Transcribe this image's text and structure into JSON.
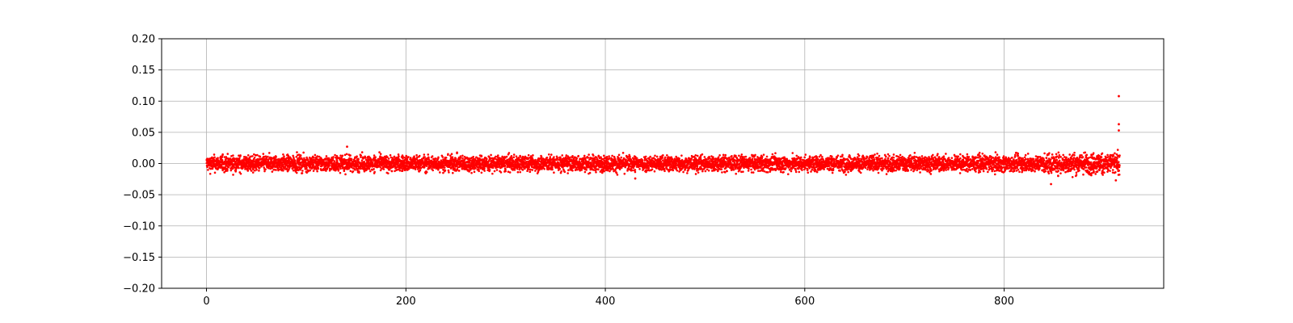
{
  "chart_data": {
    "type": "scatter",
    "title": "",
    "xlabel": "",
    "ylabel": "",
    "xlim": [
      -45,
      960
    ],
    "ylim": [
      -0.2,
      0.2
    ],
    "x_ticks": [
      0,
      200,
      400,
      600,
      800
    ],
    "x_tick_labels": [
      "0",
      "200",
      "400",
      "600",
      "800"
    ],
    "y_ticks": [
      -0.2,
      -0.15,
      -0.1,
      -0.05,
      0.0,
      0.05,
      0.1,
      0.15,
      0.2
    ],
    "y_tick_labels": [
      "−0.20",
      "−0.15",
      "−0.10",
      "−0.05",
      "0.00",
      "0.05",
      "0.10",
      "0.15",
      "0.20"
    ],
    "grid": true,
    "marker_color": "#ff0000",
    "series": [
      {
        "x_range": [
          0,
          916
        ],
        "band_segments": [
          {
            "x": [
              0,
              840
            ],
            "spread": [
              -0.018,
              0.018
            ],
            "typical": [
              -0.012,
              0.012
            ]
          },
          {
            "x": [
              840,
              880
            ],
            "spread": [
              -0.025,
              0.025
            ],
            "typical": [
              -0.015,
              0.015
            ]
          },
          {
            "x": [
              880,
              916
            ],
            "spread": [
              -0.028,
              0.033
            ],
            "typical": [
              -0.016,
              0.016
            ]
          }
        ],
        "outliers": [
          {
            "x": 141,
            "y": 0.027
          },
          {
            "x": 430,
            "y": -0.024
          },
          {
            "x": 847,
            "y": -0.033
          },
          {
            "x": 912,
            "y": -0.027
          },
          {
            "x": 915,
            "y": 0.053
          },
          {
            "x": 915,
            "y": 0.063
          },
          {
            "x": 915,
            "y": 0.108
          }
        ]
      }
    ]
  }
}
